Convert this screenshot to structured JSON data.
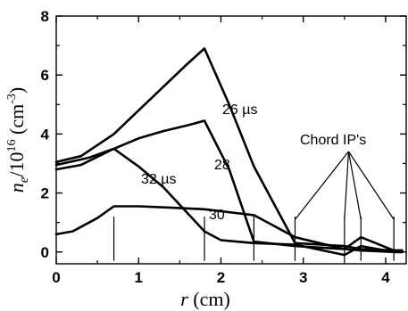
{
  "chart_data": {
    "type": "line",
    "xlabel_var": "r",
    "xlabel_unit": " (cm)",
    "ylabel_var": "n",
    "ylabel_sub": "e",
    "ylabel_rest": "/10",
    "ylabel_exp": "16",
    "ylabel_unit_pre": " (cm",
    "ylabel_unit_exp": "-3",
    "ylabel_unit_post": ")",
    "xlim": [
      0,
      4.25
    ],
    "ylim": [
      -0.4,
      8
    ],
    "xticks": [
      0,
      1,
      2,
      3,
      4
    ],
    "yticks": [
      0,
      2,
      4,
      6,
      8
    ],
    "x_tick_labels": [
      "0",
      "1",
      "2",
      "3",
      "4"
    ],
    "y_tick_labels": [
      "0",
      "2",
      "4",
      "6",
      "8"
    ],
    "series": [
      {
        "name": "26 µs",
        "x": [
          0,
          0.3,
          0.7,
          1.0,
          1.3,
          1.6,
          1.8,
          2.1,
          2.4,
          2.9,
          3.5,
          3.7,
          4.1,
          4.2
        ],
        "y": [
          3.05,
          3.25,
          4.0,
          4.8,
          5.6,
          6.4,
          6.9,
          5.0,
          2.9,
          0.3,
          0.2,
          0.1,
          0.05,
          0.05
        ]
      },
      {
        "name": "28",
        "x": [
          0,
          0.4,
          0.7,
          1.0,
          1.3,
          1.6,
          1.8,
          2.1,
          2.4,
          2.9,
          3.5,
          3.7,
          4.1,
          4.2
        ],
        "y": [
          2.95,
          3.2,
          3.5,
          3.85,
          4.1,
          4.3,
          4.45,
          2.8,
          0.35,
          0.2,
          0.1,
          0.5,
          0.05,
          0.05
        ]
      },
      {
        "name": "32 µs",
        "x": [
          0,
          0.3,
          0.7,
          1.0,
          1.3,
          1.8,
          2.0,
          2.4,
          2.9,
          3.5,
          3.7,
          4.1,
          4.2
        ],
        "y": [
          2.8,
          2.95,
          3.5,
          2.9,
          2.2,
          0.7,
          0.4,
          0.3,
          0.25,
          -0.1,
          0.2,
          0.0,
          0.0
        ]
      },
      {
        "name": "30",
        "x": [
          0,
          0.2,
          0.5,
          0.7,
          1.0,
          1.4,
          1.8,
          2.4,
          2.9,
          3.5,
          3.7,
          4.1,
          4.2
        ],
        "y": [
          0.6,
          0.7,
          1.15,
          1.55,
          1.55,
          1.5,
          1.45,
          1.25,
          0.5,
          0.1,
          0.05,
          0.0,
          0.0
        ]
      }
    ],
    "chord_ips": [
      0.7,
      1.8,
      2.4,
      2.9,
      3.5,
      3.7,
      4.1
    ],
    "annotations": {
      "label_26": "26 µs",
      "label_28": "28",
      "label_32": "32 µs",
      "label_30": "30",
      "chord": "Chord IP's"
    }
  }
}
